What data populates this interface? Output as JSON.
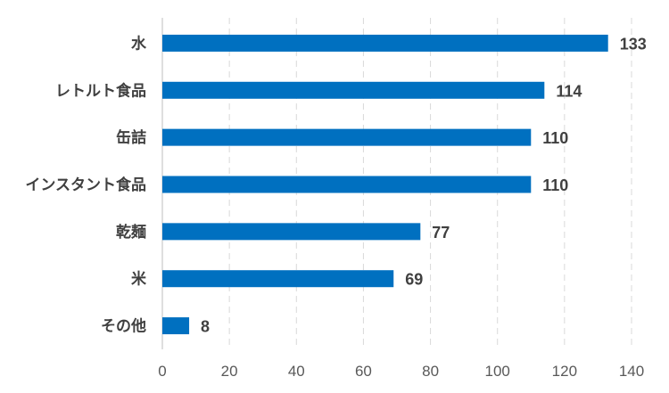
{
  "chart_data": {
    "type": "bar",
    "orientation": "horizontal",
    "categories": [
      "水",
      "レトルト食品",
      "缶詰",
      "インスタント食品",
      "乾麺",
      "米",
      "その他"
    ],
    "values": [
      133,
      114,
      110,
      110,
      77,
      69,
      8
    ],
    "xlim": [
      0,
      140
    ],
    "xticks": [
      0,
      20,
      40,
      60,
      80,
      100,
      120,
      140
    ],
    "grid": "vertical-dashed",
    "data_labels": true,
    "bar_color": "#0070C0",
    "grid_color": "#D9D9D9",
    "axis_color": "#BFBFBF"
  }
}
